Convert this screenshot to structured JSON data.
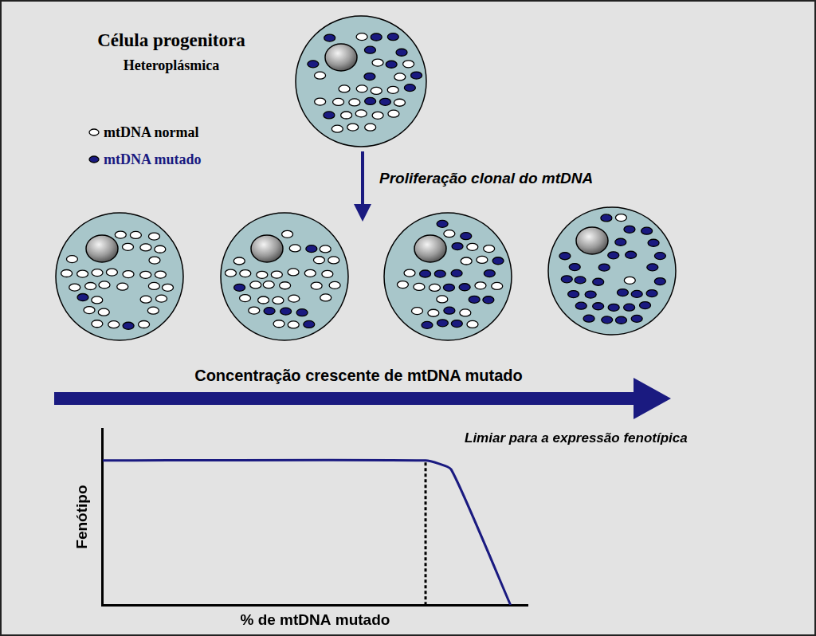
{
  "progenitor": {
    "title": "Célula progenitora",
    "subtitle": "Heteroplásmica",
    "normal": 20,
    "mutated": 13
  },
  "legend": [
    {
      "label": "mtDNA normal",
      "color": "#ffffff",
      "text_color": "#000000"
    },
    {
      "label": "mtDNA mutado",
      "color": "#1a1a80",
      "text_color": "#1a1a80"
    }
  ],
  "process_label": "Proliferação clonal do mtDNA",
  "cells": [
    {
      "normal": 30,
      "mutated": 2
    },
    {
      "normal": 26,
      "mutated": 6
    },
    {
      "normal": 16,
      "mutated": 16
    },
    {
      "normal": 2,
      "mutated": 30
    }
  ],
  "gradient_label": "Concentração crescente de mtDNA mutado",
  "chart_data": {
    "type": "line",
    "x": [
      0,
      76,
      82,
      96
    ],
    "values": [
      82,
      82,
      77,
      0
    ],
    "xlabel": "% de mtDNA mutado",
    "ylabel": "Fenótipo",
    "xlim": [
      0,
      100
    ],
    "ylim": [
      0,
      100
    ],
    "tick_labels": false,
    "grid": false,
    "color": "#1a1a80",
    "threshold": {
      "x": 76,
      "label": "Limiar para a expressão fenotípica",
      "line_style": "dashed"
    }
  }
}
